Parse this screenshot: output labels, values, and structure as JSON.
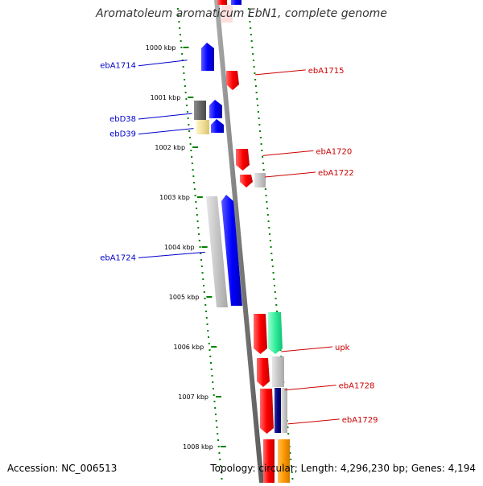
{
  "title": "Aromatoleum aromaticum EbN1, complete genome",
  "footer": {
    "accession": "Accession: NC_006513",
    "summary": "Topology: circular; Length: 4,296,230 bp; Genes: 4,194"
  },
  "colors": {
    "left_label": "#0000cc",
    "right_label": "#cc0000",
    "tick": "#008000",
    "backbone": "#8a8a8a"
  },
  "ticks": [
    {
      "label": "1000 kbp",
      "kbp": 1000
    },
    {
      "label": "1001 kbp",
      "kbp": 1001
    },
    {
      "label": "1002 kbp",
      "kbp": 1002
    },
    {
      "label": "1003 kbp",
      "kbp": 1003
    },
    {
      "label": "1004 kbp",
      "kbp": 1004
    },
    {
      "label": "1005 kbp",
      "kbp": 1005
    },
    {
      "label": "1006 kbp",
      "kbp": 1006
    },
    {
      "label": "1007 kbp",
      "kbp": 1007
    },
    {
      "label": "1008 kbp",
      "kbp": 1008
    }
  ],
  "labels_left": [
    {
      "text": "ebA1714",
      "kbp": 1000.35
    },
    {
      "text": "ebD38",
      "kbp": 1001.42
    },
    {
      "text": "ebD39",
      "kbp": 1001.72
    },
    {
      "text": "ebA1724",
      "kbp": 1004.2
    }
  ],
  "labels_right": [
    {
      "text": "ebA1715",
      "kbp": 1000.45
    },
    {
      "text": "ebA1720",
      "kbp": 1002.07
    },
    {
      "text": "ebA1722",
      "kbp": 1002.5
    },
    {
      "text": "upk",
      "kbp": 1006.0
    },
    {
      "text": "ebA1728",
      "kbp": 1006.77
    },
    {
      "text": "ebA1729",
      "kbp": 1007.45
    }
  ]
}
